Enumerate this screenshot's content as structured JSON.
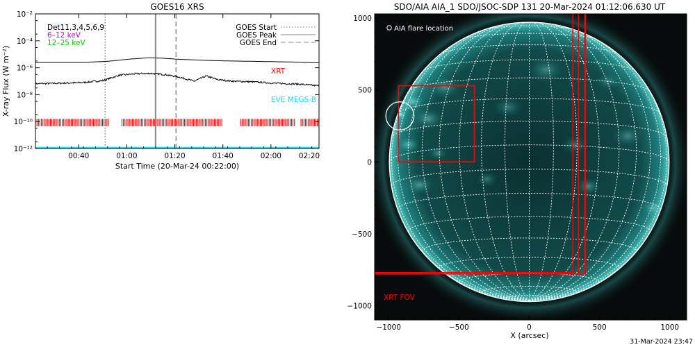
{
  "goes": {
    "title": "GOES16 XRS",
    "ylabel": "X-ray Flux (W m⁻²)",
    "xlabel": "Start Time (20-Mar-24 00:22:00)",
    "legend_left": [
      {
        "text": "Det11,3,4,5,6,9",
        "color": "#000000"
      },
      {
        "text": "6–12 keV",
        "color": "#cc00cc"
      },
      {
        "text": "12–25 keV",
        "color": "#00cc00"
      }
    ],
    "legend_right": [
      {
        "text": "GOES Start",
        "dash": "1.5,2.5",
        "color": "#777777"
      },
      {
        "text": "GOES Peak",
        "dash": "",
        "color": "#888888"
      },
      {
        "text": "GOES End",
        "dash": "7,4",
        "color": "#888888"
      }
    ],
    "xrt_label": "XRT",
    "eve_label": "EVE MEGS-B",
    "colors": {
      "flux": "#000000",
      "xrt": "#ff0000",
      "eve": "#00e5ff"
    }
  },
  "aia": {
    "title": "SDO/AIA AIA_1 SDO/JSOC-SDP 131 20-Mar-2024 01:12:06.630 UT",
    "xlabel": "X (arcsec)",
    "flare_label": "AIA flare location",
    "fov_label": "XRT FOV",
    "footer": "31-Mar-2024 23:47",
    "colors": {
      "box": "#ff0000",
      "limb": "#ffffff",
      "disk": "#0d3a3a"
    }
  },
  "chart_data": [
    {
      "type": "line",
      "title": "GOES16 XRS",
      "xlabel": "Start Time (20-Mar-24 00:22:00)",
      "ylabel": "X-ray Flux (W m⁻²)",
      "x_unit": "minutes after 00:22:00",
      "xlim": [
        0,
        118
      ],
      "ylim": [
        1e-12,
        0.01
      ],
      "yscale": "log",
      "xticks": [
        {
          "label": "00:40",
          "value": 18
        },
        {
          "label": "01:00",
          "value": 38
        },
        {
          "label": "01:20",
          "value": 58
        },
        {
          "label": "01:40",
          "value": 78
        },
        {
          "label": "02:00",
          "value": 98
        },
        {
          "label": "02:20",
          "value": 118
        }
      ],
      "yticks": [
        {
          "label": "10⁻¹²",
          "value": 1e-12
        },
        {
          "label": "10⁻¹⁰",
          "value": 1e-10
        },
        {
          "label": "10⁻⁸",
          "value": 1e-08
        },
        {
          "label": "10⁻⁶",
          "value": 1e-06
        },
        {
          "label": "10⁻⁴",
          "value": 0.0001
        },
        {
          "label": "10⁻²",
          "value": 0.01
        }
      ],
      "series": [
        {
          "name": "GOES Peak",
          "style": "line",
          "x": [
            0,
            20,
            30,
            40,
            47,
            52,
            60,
            70,
            80,
            90,
            100,
            110,
            118
          ],
          "y": [
            2.5e-06,
            2.5e-06,
            3e-06,
            4.5e-06,
            5.5e-06,
            5.2e-06,
            4.2e-06,
            3.6e-06,
            3.2e-06,
            3e-06,
            2.8e-06,
            2.6e-06,
            2.3e-06
          ]
        },
        {
          "name": "Det11,3,4,5,6,9",
          "style": "noisy",
          "x": [
            0,
            10,
            20,
            28,
            35,
            42,
            48,
            54,
            60,
            66,
            71,
            76,
            82,
            90,
            100,
            110,
            118
          ],
          "y": [
            6.5e-08,
            7e-08,
            8e-08,
            1.1e-07,
            2.8e-07,
            3.6e-07,
            3.8e-07,
            3.1e-07,
            2e-07,
            1e-07,
            2.4e-07,
            1.3e-07,
            1e-07,
            9e-08,
            7e-08,
            6e-08,
            4.5e-08
          ]
        },
        {
          "name": "EVE MEGS-B",
          "style": "line",
          "x": [
            0,
            118
          ],
          "y": [
            1.15e-12,
            1.15e-12
          ]
        }
      ],
      "xrt_intervals": [
        [
          0,
          30.5
        ],
        [
          36,
          78
        ],
        [
          85.5,
          108
        ],
        [
          110.5,
          118
        ]
      ],
      "vlines": [
        {
          "name": "GOES Start",
          "x": 29
        },
        {
          "name": "GOES Peak",
          "x": 50
        },
        {
          "name": "GOES End",
          "x": 58.5
        }
      ],
      "grid": false
    },
    {
      "type": "scatter",
      "title": "SDO/AIA AIA_1 SDO/JSOC-SDP 131 20-Mar-2024 01:12:06.630 UT",
      "xlabel": "X (arcsec)",
      "xlim": [
        -1100,
        1120
      ],
      "ylim": [
        -1100,
        1030
      ],
      "xticks": [
        -1000,
        -500,
        0,
        500,
        1000
      ],
      "yticks": [
        -1000,
        -500,
        0,
        500,
        1000
      ],
      "solar_radius": 995,
      "grid_step_deg": 10,
      "flare_location": {
        "x": -920,
        "y": 320,
        "radius": 100
      },
      "boxes": [
        {
          "name": "XRT FOV",
          "x0": -1110,
          "x1": 395,
          "y0": -780,
          "y1": 1100
        },
        {
          "name": "XRT FOV",
          "x0": -1100,
          "x1": 310,
          "y0": -770,
          "y1": 1100
        },
        {
          "name": "XRT FOV",
          "x0": 350,
          "x1": 400,
          "y0": -780,
          "y1": 1100
        },
        {
          "name": "flare zoom",
          "x0": -930,
          "x1": -390,
          "y0": 0,
          "y1": 530
        }
      ]
    }
  ]
}
